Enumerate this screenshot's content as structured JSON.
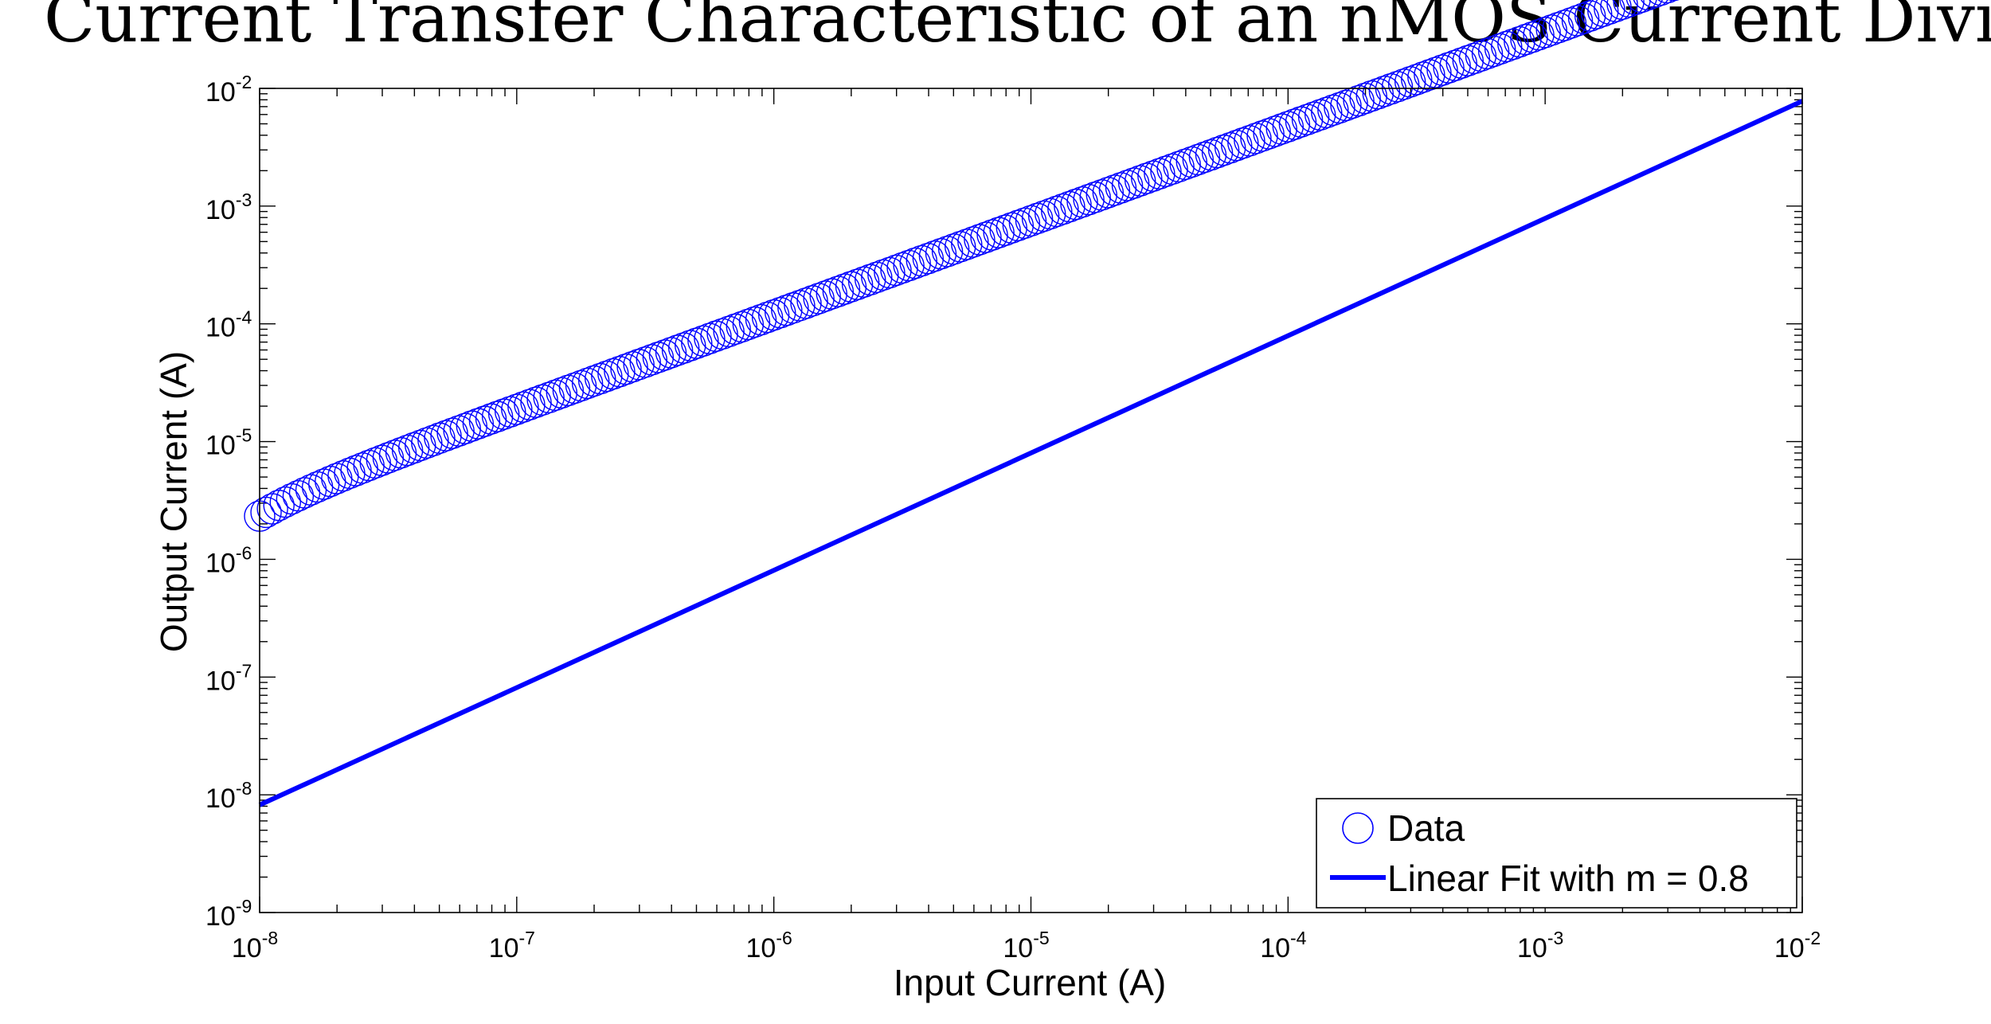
{
  "chart_data": {
    "type": "scatter",
    "title": "Current Transfer Characteristic of an nMOS Current Divider",
    "xlabel": "Input Current (A)",
    "ylabel": "Output Current (A)",
    "xscale": "log",
    "yscale": "log",
    "xlim": [
      1e-08,
      0.01
    ],
    "ylim": [
      1e-09,
      0.01
    ],
    "x_tick_labels": [
      {
        "value": 1e-08,
        "base": "10",
        "exp": "-8"
      },
      {
        "value": 1e-07,
        "base": "10",
        "exp": "-7"
      },
      {
        "value": 1e-06,
        "base": "10",
        "exp": "-6"
      },
      {
        "value": 1e-05,
        "base": "10",
        "exp": "-5"
      },
      {
        "value": 0.0001,
        "base": "10",
        "exp": "-4"
      },
      {
        "value": 0.001,
        "base": "10",
        "exp": "-3"
      },
      {
        "value": 0.01,
        "base": "10",
        "exp": "-2"
      }
    ],
    "y_tick_labels": [
      {
        "value": 1e-09,
        "base": "10",
        "exp": "-9"
      },
      {
        "value": 1e-08,
        "base": "10",
        "exp": "-8"
      },
      {
        "value": 1e-07,
        "base": "10",
        "exp": "-7"
      },
      {
        "value": 1e-06,
        "base": "10",
        "exp": "-6"
      },
      {
        "value": 1e-05,
        "base": "10",
        "exp": "-5"
      },
      {
        "value": 0.0001,
        "base": "10",
        "exp": "-4"
      },
      {
        "value": 0.001,
        "base": "10",
        "exp": "-3"
      },
      {
        "value": 0.01,
        "base": "10",
        "exp": "-2"
      }
    ],
    "series": [
      {
        "name": "Data",
        "kind": "markers",
        "marker": "circle",
        "color": "#0000ff",
        "x_range": [
          1e-08,
          0.01
        ],
        "points_per_decade": 40,
        "y_model": {
          "coefficient": 7.5,
          "exponent": 0.8
        }
      },
      {
        "name": "Linear Fit with m = 0.8",
        "kind": "line",
        "color": "#0000ff",
        "x": [
          1e-08,
          0.01
        ],
        "y": [
          8.2e-09,
          0.0078
        ]
      }
    ],
    "legend": {
      "location": "bottom-right",
      "entries": [
        "Data",
        "Linear Fit with m = 0.8"
      ]
    },
    "grid": false
  }
}
